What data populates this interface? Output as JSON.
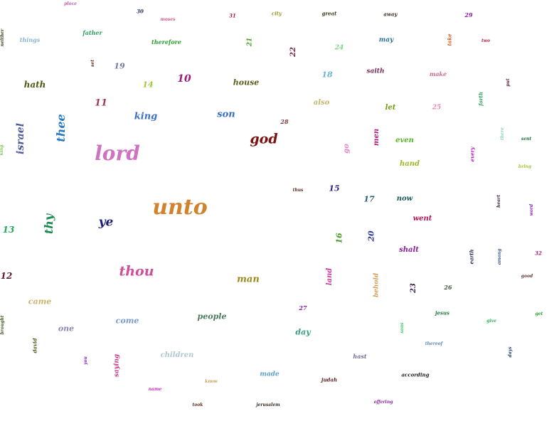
{
  "words": [
    {
      "text": "unto",
      "color": "#d2812d"
    },
    {
      "text": "lord",
      "color": "#cf72c0"
    },
    {
      "text": "thou",
      "color": "#cf4f9a"
    },
    {
      "text": "god",
      "color": "#7b1010"
    },
    {
      "text": "thee",
      "color": "#2c7cc1"
    },
    {
      "text": "thy",
      "color": "#1d8a52"
    },
    {
      "text": "israel",
      "color": "#4f5a9a"
    },
    {
      "text": "ye",
      "color": "#1c1c7c"
    },
    {
      "text": "king",
      "color": "#3a6fc9"
    },
    {
      "text": "son",
      "color": "#3a6fc9"
    },
    {
      "text": "man",
      "color": "#9a8a1c"
    },
    {
      "text": "hath",
      "color": "#4b5b14"
    },
    {
      "text": "house",
      "color": "#5b5b1c"
    },
    {
      "text": "people",
      "color": "#4b7b5b"
    },
    {
      "text": "came",
      "color": "#c8b46e"
    },
    {
      "text": "come",
      "color": "#7a9ac8"
    },
    {
      "text": "children",
      "color": "#b0c8d2"
    },
    {
      "text": "one",
      "color": "#8a8ab4"
    },
    {
      "text": "day",
      "color": "#3aa082"
    },
    {
      "text": "land",
      "color": "#d23aa0"
    },
    {
      "text": "behold",
      "color": "#d2a05a"
    },
    {
      "text": "shalt",
      "color": "#8a1ca0"
    },
    {
      "text": "went",
      "color": "#b4145a"
    },
    {
      "text": "now",
      "color": "#1c5a5a"
    },
    {
      "text": "hand",
      "color": "#a0b428"
    },
    {
      "text": "even",
      "color": "#5ab428"
    },
    {
      "text": "let",
      "color": "#6ea014"
    },
    {
      "text": "also",
      "color": "#c8b46e"
    },
    {
      "text": "men",
      "color": "#b41c82"
    },
    {
      "text": "go",
      "color": "#e882c8"
    },
    {
      "text": "saith",
      "color": "#7a2a5a"
    },
    {
      "text": "may",
      "color": "#2a6e9a"
    },
    {
      "text": "make",
      "color": "#c86e8a"
    },
    {
      "text": "made",
      "color": "#5aa0c8"
    },
    {
      "text": "saying",
      "color": "#c83a8a"
    },
    {
      "text": "10",
      "color": "#9a1c7a"
    },
    {
      "text": "11",
      "color": "#9a3a5a"
    },
    {
      "text": "13",
      "color": "#1caa5a"
    },
    {
      "text": "12",
      "color": "#5a1c2a"
    },
    {
      "text": "14",
      "color": "#a0c83a"
    },
    {
      "text": "15",
      "color": "#2a1c8a"
    },
    {
      "text": "16",
      "color": "#4b9a2a"
    },
    {
      "text": "17",
      "color": "#2a5a7a"
    },
    {
      "text": "18",
      "color": "#6eb4d2"
    },
    {
      "text": "19",
      "color": "#6e7aa0"
    },
    {
      "text": "20",
      "color": "#2a3a9a"
    },
    {
      "text": "21",
      "color": "#4ba02a"
    },
    {
      "text": "22",
      "color": "#7a1c3a"
    },
    {
      "text": "23",
      "color": "#3a1c5a"
    },
    {
      "text": "24",
      "color": "#82d282"
    },
    {
      "text": "25",
      "color": "#e88ab4"
    },
    {
      "text": "26",
      "color": "#3a5a3a"
    },
    {
      "text": "27",
      "color": "#7a1cb4"
    },
    {
      "text": "28",
      "color": "#7a3a3a"
    },
    {
      "text": "29",
      "color": "#8a1ca0"
    },
    {
      "text": "30",
      "color": "#1c2a5a"
    },
    {
      "text": "31",
      "color": "#b41c3a"
    },
    {
      "text": "32",
      "color": "#b41c82"
    },
    {
      "text": "father",
      "color": "#2aa05a"
    },
    {
      "text": "therefore",
      "color": "#2aa02a"
    },
    {
      "text": "things",
      "color": "#8ab4d2"
    },
    {
      "text": "city",
      "color": "#9a9a2a"
    },
    {
      "text": "great",
      "color": "#3a3a1c"
    },
    {
      "text": "away",
      "color": "#3a2a1c"
    },
    {
      "text": "moses",
      "color": "#c85a8a"
    },
    {
      "text": "place",
      "color": "#c85ab4"
    },
    {
      "text": "neither",
      "color": "#3a3a1c"
    },
    {
      "text": "set",
      "color": "#5a2a1c"
    },
    {
      "text": "take",
      "color": "#d25a1c"
    },
    {
      "text": "two",
      "color": "#b41c3a"
    },
    {
      "text": "put",
      "color": "#5a1c3a"
    },
    {
      "text": "forth",
      "color": "#2aa05a"
    },
    {
      "text": "there",
      "color": "#8ad2b4"
    },
    {
      "text": "sent",
      "color": "#1c6e3a"
    },
    {
      "text": "every",
      "color": "#b41cc8"
    },
    {
      "text": "bring",
      "color": "#a0c83a"
    },
    {
      "text": "thus",
      "color": "#5a2a1c"
    },
    {
      "text": "heart",
      "color": "#3a1c3a"
    },
    {
      "text": "word",
      "color": "#8a1cb4"
    },
    {
      "text": "earth",
      "color": "#2a2a5a"
    },
    {
      "text": "among",
      "color": "#3a5a8a"
    },
    {
      "text": "good",
      "color": "#5a3a2a"
    },
    {
      "text": "jesus",
      "color": "#1c7a3a"
    },
    {
      "text": "give",
      "color": "#2ab45a"
    },
    {
      "text": "get",
      "color": "#2aa02a"
    },
    {
      "text": "sons",
      "color": "#3ac85a"
    },
    {
      "text": "thereof",
      "color": "#5a8ab4"
    },
    {
      "text": "days",
      "color": "#2a3a7a"
    },
    {
      "text": "hast",
      "color": "#6e6e9a"
    },
    {
      "text": "according",
      "color": "#1c1c2a"
    },
    {
      "text": "judah",
      "color": "#5a1c1c"
    },
    {
      "text": "offering",
      "color": "#8a2aa0"
    },
    {
      "text": "jerusalem",
      "color": "#3a2a1c"
    },
    {
      "text": "took",
      "color": "#5a2a1c"
    },
    {
      "text": "know",
      "color": "#c8a05a"
    },
    {
      "text": "name",
      "color": "#c82ab4"
    },
    {
      "text": "you",
      "color": "#8a2ac8"
    },
    {
      "text": "david",
      "color": "#4b5a14"
    },
    {
      "text": "brought",
      "color": "#3a5a1c"
    },
    {
      "text": "king",
      "color": "#82c85a"
    }
  ]
}
